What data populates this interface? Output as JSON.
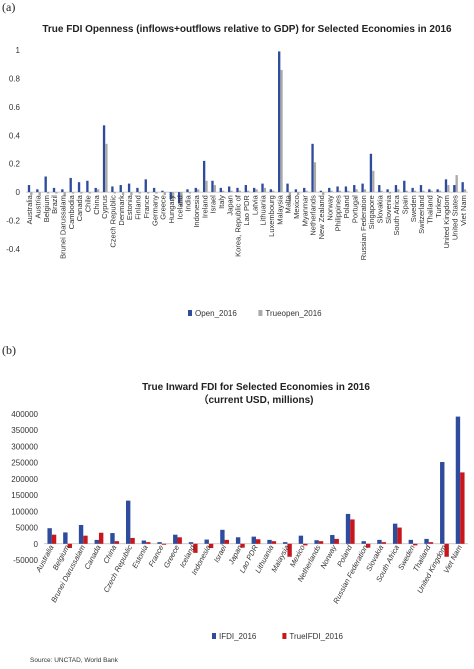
{
  "panels": {
    "a": "(a)",
    "b": "(b)"
  },
  "colors": {
    "blue": "#2E4B9C",
    "gray": "#AAAAAA",
    "red": "#C8161D"
  },
  "source": "Source: UNCTAD, World Bank",
  "chart_data": [
    {
      "type": "bar",
      "title": "True FDI Openness (inflows+outflows relative to GDP) for Selected Economies in 2016",
      "xlabel": "",
      "ylabel": "",
      "ylim": [
        -0.4,
        1.0
      ],
      "yticks": [
        -0.4,
        -0.2,
        0,
        0.2,
        0.4,
        0.6,
        0.8,
        1
      ],
      "grid": false,
      "legend": "bottom",
      "categories": [
        "Australia",
        "Austria",
        "Belgium",
        "Brazil",
        "Brunei Darussalam",
        "Cambodia",
        "Canada",
        "Chile",
        "China",
        "Cyprus",
        "Czech Republic",
        "Denmark",
        "Estonia",
        "Finland",
        "France",
        "Germany",
        "Greece",
        "Hungary",
        "Iceland",
        "India",
        "Indonesia",
        "Ireland",
        "Israel",
        "Italy",
        "Japan",
        "Korea, Republic of",
        "Lao PDR",
        "Latvia",
        "Lithuania",
        "Luxembourg",
        "Malaysia",
        "Malta",
        "Mexico",
        "Myanmar",
        "Netherlands",
        "New Zealand",
        "Norway",
        "Philippines",
        "Poland",
        "Portugal",
        "Russian Federation",
        "Singapore",
        "Slovakia",
        "Slovenia",
        "South Africa",
        "Spain",
        "Sweden",
        "Switzerland",
        "Thailand",
        "Turkey",
        "United Kingdom",
        "United States",
        "Viet Nam"
      ],
      "series": [
        {
          "name": "Open_2016",
          "color": "#2E4B9C",
          "values": [
            0.05,
            0.02,
            0.11,
            0.03,
            0.02,
            0.1,
            0.07,
            0.08,
            0.03,
            0.47,
            0.04,
            0.05,
            0.06,
            0.03,
            0.09,
            0.03,
            0.01,
            -0.05,
            -0.08,
            0.02,
            0.03,
            0.22,
            0.08,
            0.03,
            0.04,
            0.03,
            0.05,
            0.03,
            0.06,
            0.02,
            0.99,
            0.06,
            0.02,
            0.03,
            0.34,
            0.01,
            0.03,
            0.04,
            0.04,
            0.05,
            0.06,
            0.27,
            0.05,
            0.02,
            0.05,
            0.08,
            0.03,
            0.05,
            0.02,
            0.02,
            0.09,
            0.05,
            0.07
          ]
        },
        {
          "name": "Trueopen_2016",
          "color": "#AAAAAA",
          "values": [
            -0.02,
            -0.02,
            -0.01,
            -0.01,
            -0.03,
            -0.01,
            -0.01,
            -0.01,
            0.02,
            0.34,
            -0.01,
            -0.02,
            -0.02,
            -0.01,
            -0.01,
            -0.01,
            -0.02,
            -0.06,
            -0.1,
            -0.01,
            0.02,
            0.08,
            0.05,
            0.01,
            0.01,
            0.01,
            0.01,
            0.02,
            0.03,
            0.01,
            0.86,
            -0.07,
            -0.02,
            0.01,
            0.21,
            -0.02,
            0.01,
            0.01,
            0.01,
            0.02,
            0.02,
            0.15,
            0.01,
            -0.01,
            0.02,
            0.01,
            0.01,
            0.01,
            0.01,
            0.01,
            0.05,
            0.12,
            0.02
          ]
        }
      ]
    },
    {
      "type": "bar",
      "title": "True Inward FDI for Selected Economies in 2016",
      "subtitle": "（current USD, millions)",
      "xlabel": "",
      "ylabel": "",
      "ylim": [
        -50000,
        400000
      ],
      "yticks": [
        -50000,
        0,
        50000,
        100000,
        150000,
        200000,
        250000,
        300000,
        350000,
        400000
      ],
      "grid": false,
      "legend": "bottom",
      "categories": [
        "Australia",
        "Belgium",
        "Brunei Darussalam",
        "Canada",
        "China",
        "Czech Republic",
        "Estonia",
        "France",
        "Greece",
        "Iceland",
        "Indonesia",
        "Israel",
        "Japan",
        "Lao PDR",
        "Lithuania",
        "Malaysia",
        "Mexico",
        "Netherlands",
        "Norway",
        "Poland",
        "Russian Federation",
        "Slovakia",
        "South Africa",
        "Sweden",
        "Thailand",
        "United Kingdom",
        "Viet Nam"
      ],
      "series": [
        {
          "name": "IFDI_2016",
          "color": "#2E4B9C",
          "values": [
            48000,
            35000,
            58000,
            12000,
            33000,
            133000,
            10000,
            5000,
            28000,
            5000,
            13000,
            43000,
            20000,
            22000,
            12000,
            5000,
            25000,
            11000,
            27000,
            92000,
            8000,
            12000,
            62000,
            12000,
            15000,
            252000,
            392000
          ]
        },
        {
          "name": "TrueIFDI_2016",
          "color": "#C8161D",
          "values": [
            28000,
            -13000,
            25000,
            34000,
            8000,
            18000,
            5000,
            -3000,
            20000,
            -28000,
            -13000,
            12000,
            -12000,
            14000,
            8000,
            -40000,
            -5000,
            8000,
            15000,
            75000,
            -12000,
            5000,
            50000,
            -5000,
            5000,
            -40000,
            220000
          ]
        }
      ]
    }
  ]
}
